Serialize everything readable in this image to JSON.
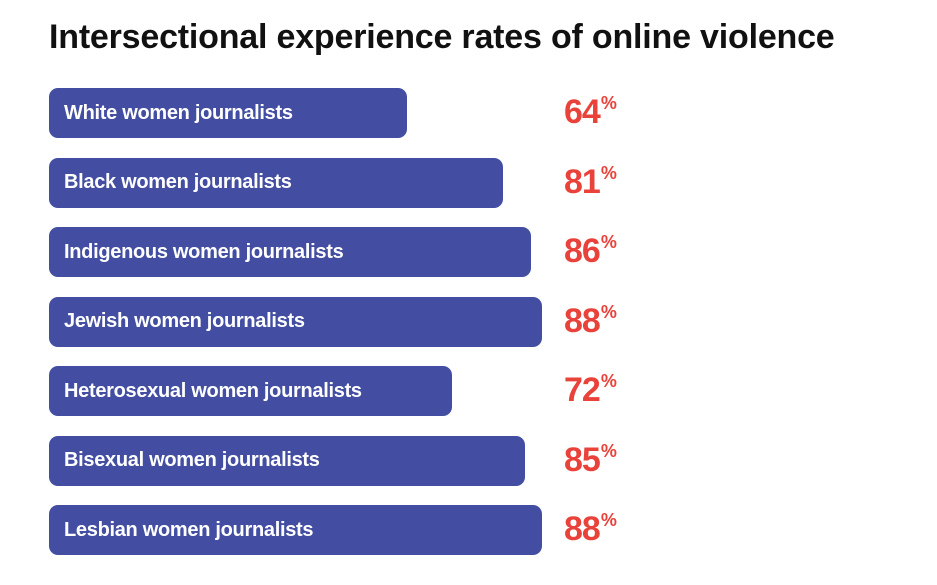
{
  "chart_data": {
    "type": "bar",
    "orientation": "horizontal",
    "title": "Intersectional experience rates of online violence",
    "categories": [
      "White women journalists",
      "Black women journalists",
      "Indigenous women journalists",
      "Jewish women journalists",
      "Heterosexual women journalists",
      "Bisexual women journalists",
      "Lesbian women journalists"
    ],
    "values": [
      64,
      81,
      86,
      88,
      72,
      85,
      88
    ],
    "value_unit": "%",
    "xlim": [
      0,
      100
    ],
    "grid": false,
    "legend": "none",
    "colors": {
      "bar": "#434ea2",
      "value_text": "#e8423a",
      "label_text": "#ffffff",
      "title_text": "#111111"
    }
  }
}
